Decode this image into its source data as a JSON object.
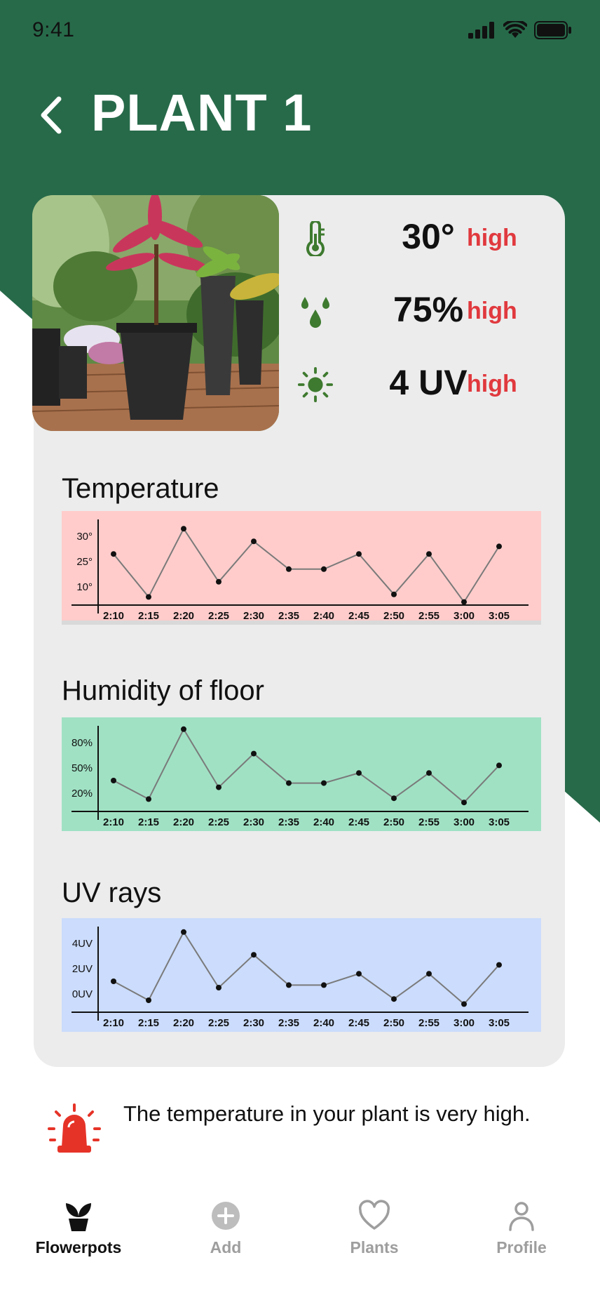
{
  "status_bar": {
    "time": "9:41"
  },
  "header": {
    "title": "PLANT 1"
  },
  "colors": {
    "brand_green": "#276a4a",
    "alert_red": "#e0393e",
    "temp_bg": "#ffcccb",
    "humidity_bg": "#a0e1c4",
    "uv_bg": "#cbdcfc",
    "icon_green": "#3e7a2f"
  },
  "metrics": [
    {
      "icon": "thermometer-icon",
      "value": "30°",
      "status": "high"
    },
    {
      "icon": "water-drops-icon",
      "value": "75%",
      "status": "high"
    },
    {
      "icon": "sun-icon",
      "value": "4 UV",
      "status": "high"
    }
  ],
  "charts": {
    "temperature": {
      "title": "Temperature"
    },
    "humidity": {
      "title": "Humidity of floor"
    },
    "uv": {
      "title": "UV rays"
    }
  },
  "chart_data": [
    {
      "type": "line",
      "title": "Temperature",
      "x": [
        "2:10",
        "2:15",
        "2:20",
        "2:25",
        "2:30",
        "2:35",
        "2:40",
        "2:45",
        "2:50",
        "2:55",
        "3:00",
        "3:05"
      ],
      "y_ticks": [
        "30°",
        "25°",
        "10°"
      ],
      "y_tick_values": [
        30,
        25,
        10
      ],
      "values": [
        23,
        6,
        33,
        12,
        28,
        17,
        17,
        23,
        7,
        23,
        4,
        26
      ],
      "grid": false
    },
    {
      "type": "line",
      "title": "Humidity of floor",
      "x": [
        "2:10",
        "2:15",
        "2:20",
        "2:25",
        "2:30",
        "2:35",
        "2:40",
        "2:45",
        "2:50",
        "2:55",
        "3:00",
        "3:05"
      ],
      "y_ticks": [
        "80%",
        "50%",
        "20%"
      ],
      "y_tick_values": [
        80,
        50,
        20
      ],
      "values": [
        35,
        13,
        96,
        27,
        67,
        32,
        32,
        44,
        14,
        44,
        9,
        53
      ],
      "grid": false
    },
    {
      "type": "line",
      "title": "UV rays",
      "x": [
        "2:10",
        "2:15",
        "2:20",
        "2:25",
        "2:30",
        "2:35",
        "2:40",
        "2:45",
        "2:50",
        "2:55",
        "3:00",
        "3:05"
      ],
      "y_ticks": [
        "4UV",
        "2UV",
        "0UV"
      ],
      "y_tick_values": [
        4,
        2,
        0
      ],
      "values": [
        1.0,
        -0.5,
        4.9,
        0.5,
        3.1,
        0.7,
        0.7,
        1.6,
        -0.4,
        1.6,
        -0.8,
        2.3
      ],
      "grid": false
    }
  ],
  "alert": {
    "icon": "siren-icon",
    "text": "The temperature in your plant is very high."
  },
  "tabbar": {
    "tabs": [
      {
        "label": "Flowerpots",
        "icon": "plant-pot-icon",
        "active": true
      },
      {
        "label": "Add",
        "icon": "add-icon",
        "active": false
      },
      {
        "label": "Plants",
        "icon": "heart-icon",
        "active": false
      },
      {
        "label": "Profile",
        "icon": "profile-icon",
        "active": false
      }
    ]
  }
}
